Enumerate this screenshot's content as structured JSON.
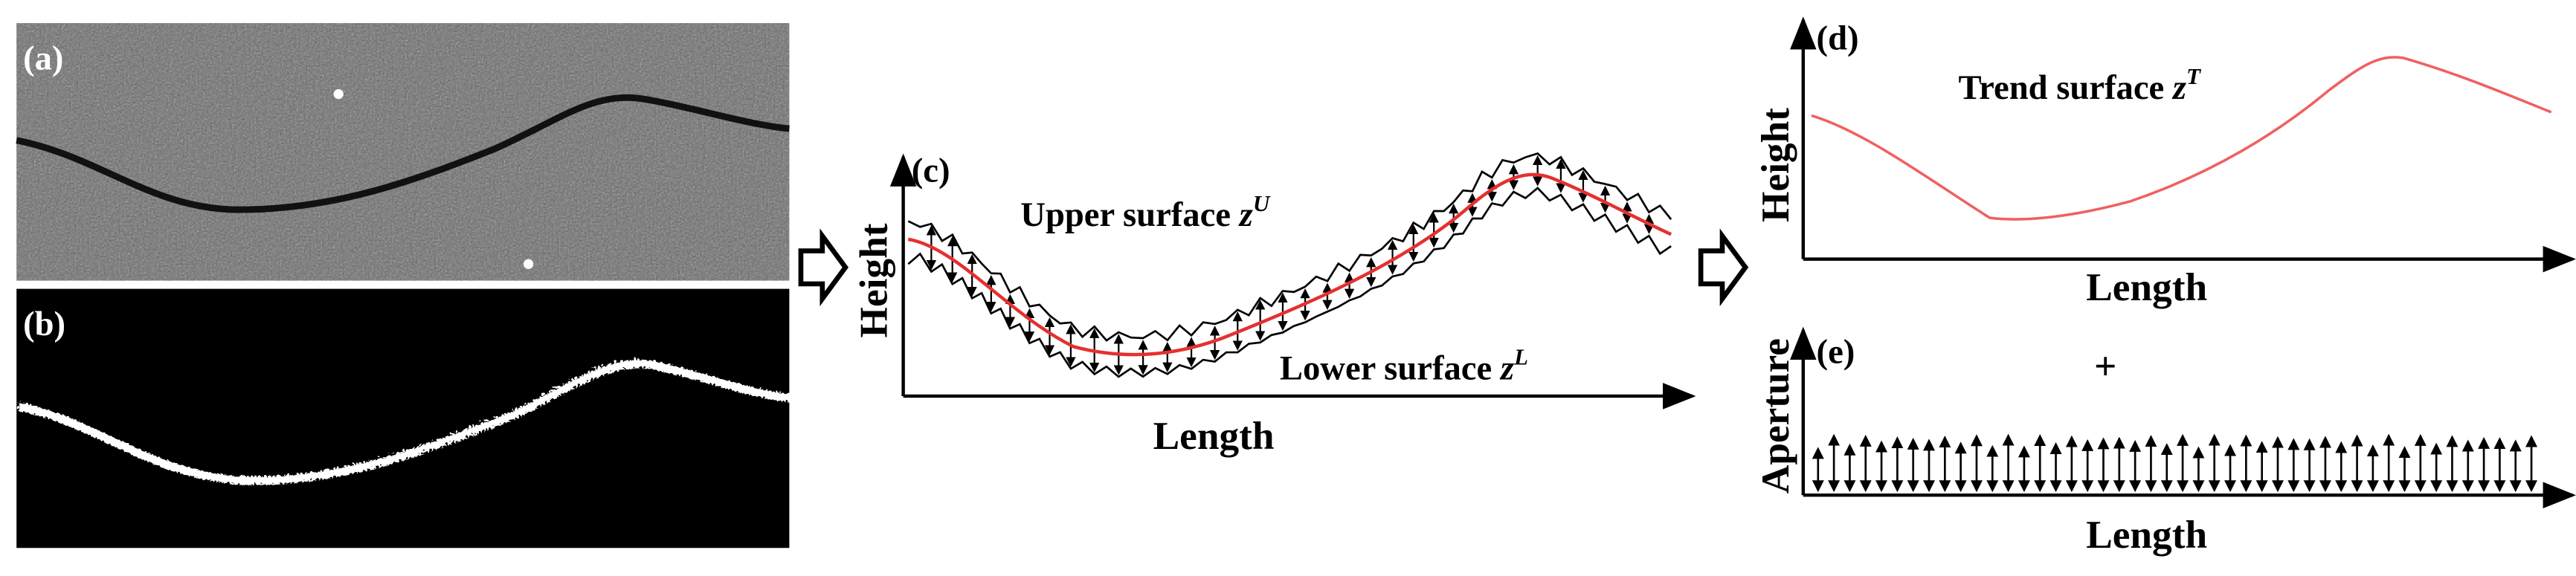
{
  "panels": {
    "a": {
      "label": "(a)"
    },
    "b": {
      "label": "(b)"
    },
    "c": {
      "label": "(c)",
      "upper": {
        "text": "Upper surface",
        "var": "z",
        "sup": "U"
      },
      "lower": {
        "text": "Lower surface",
        "var": "z",
        "sup": "L"
      },
      "y_axis": "Height",
      "x_axis": "Length"
    },
    "d": {
      "label": "(d)",
      "trend": {
        "text": "Trend surface",
        "var": "z",
        "sup": "T"
      },
      "y_axis": "Height",
      "x_axis": "Length"
    },
    "e": {
      "label": "(e)",
      "operator": "+",
      "y_axis": "Aperture",
      "x_axis": "Length"
    }
  }
}
